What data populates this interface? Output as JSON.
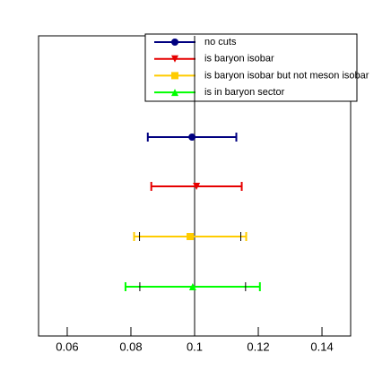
{
  "chart_data": {
    "type": "errorbar",
    "series": [
      {
        "name": "no cuts",
        "color": "#000080",
        "marker": "circle",
        "value": 0.0992,
        "error": 0.0139
      },
      {
        "name": "is baryon isobar",
        "color": "#e60000",
        "marker": "triangle-down",
        "value": 0.1006,
        "error": 0.0142
      },
      {
        "name": "is baryon isobar but not meson isobar",
        "color": "#ffcc00",
        "marker": "square",
        "value": 0.0986,
        "error": 0.0176,
        "inner_error": 0.0159
      },
      {
        "name": "is in baryon sector",
        "color": "#00ff00",
        "marker": "triangle-up",
        "value": 0.0994,
        "error": 0.0211,
        "inner_error": 0.0166
      }
    ],
    "reference_line": 0.1,
    "xlim": [
      0.051,
      0.149
    ],
    "xticks": [
      0.06,
      0.08,
      0.1,
      0.12,
      0.14
    ]
  }
}
